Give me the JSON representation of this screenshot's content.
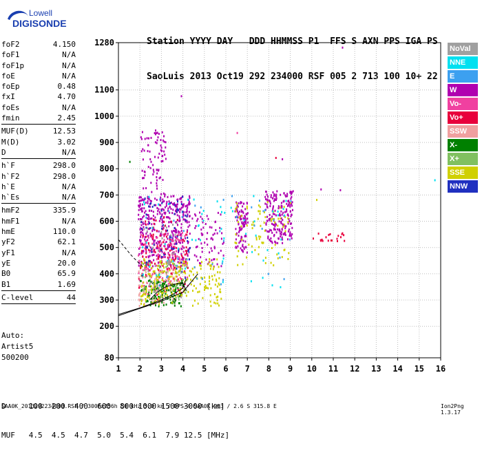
{
  "logo": {
    "line1": "Lowell",
    "line2": "DIGISONDE"
  },
  "header": {
    "line1": "Station YYYY DAY   DDD HHMMSS P1  FFS S AXN PPS IGA PS",
    "line2": "SaoLuis 2013 Oct19 292 234000 RSF 005 2 713 100 10+ 22"
  },
  "params_group1": [
    {
      "name": "foF2",
      "value": "4.150"
    },
    {
      "name": "foF1",
      "value": "N/A"
    },
    {
      "name": "foF1p",
      "value": "N/A"
    },
    {
      "name": "foE",
      "value": "N/A"
    },
    {
      "name": "foEp",
      "value": "0.48"
    },
    {
      "name": "fxI",
      "value": "4.70"
    },
    {
      "name": "foEs",
      "value": "N/A"
    },
    {
      "name": "fmin",
      "value": "2.45"
    }
  ],
  "params_group2": [
    {
      "name": "MUF(D)",
      "value": "12.53"
    },
    {
      "name": "M(D)",
      "value": "3.02"
    },
    {
      "name": "D",
      "value": "N/A"
    }
  ],
  "params_group3": [
    {
      "name": "h`F",
      "value": "298.0"
    },
    {
      "name": "h`F2",
      "value": "298.0"
    },
    {
      "name": "h`E",
      "value": "N/A"
    },
    {
      "name": "h`Es",
      "value": "N/A"
    }
  ],
  "params_group4": [
    {
      "name": "hmF2",
      "value": "335.9"
    },
    {
      "name": "hmF1",
      "value": "N/A"
    },
    {
      "name": "hmE",
      "value": "110.0"
    },
    {
      "name": "yF2",
      "value": "62.1"
    },
    {
      "name": "yF1",
      "value": "N/A"
    },
    {
      "name": "yE",
      "value": "20.0"
    },
    {
      "name": "B0",
      "value": "65.9"
    },
    {
      "name": "B1",
      "value": "1.69"
    }
  ],
  "clevel": {
    "name": "C-level",
    "value": "44"
  },
  "auto": {
    "line1": "Auto:",
    "line2": "Artist5",
    "line3": "500200"
  },
  "legend": [
    {
      "label": "NoVal",
      "color": "#a0a0a0"
    },
    {
      "label": "NNE",
      "color": "#00e0f0"
    },
    {
      "label": "E",
      "color": "#3ca0f0"
    },
    {
      "label": "W",
      "color": "#b000b0"
    },
    {
      "label": "Vo-",
      "color": "#f040a0"
    },
    {
      "label": "Vo+",
      "color": "#e8003c"
    },
    {
      "label": "SSW",
      "color": "#f0a0a0"
    },
    {
      "label": "X-",
      "color": "#008000"
    },
    {
      "label": "X+",
      "color": "#80c060"
    },
    {
      "label": "SSE",
      "color": "#d0d000"
    },
    {
      "label": "NNW",
      "color": "#2030c0"
    }
  ],
  "footer": {
    "d_line": "D     100  200  400  600  800 1000 1500 3000 [km]",
    "muf_line": "MUF   4.5  4.5  4.7  5.0  5.4  6.1  7.9 12.5 [MHz]",
    "file_line": "SAA0K_2013292234000.RSF / 300fx256h 50 kHz 5.0 km / DPS-4 SAA0K 903 / 2.6 S 315.8 E",
    "version": "Ion2Png 1.3.17"
  },
  "chart_data": {
    "type": "scatter",
    "title": "",
    "xlabel": "",
    "ylabel": "",
    "xlim": [
      1,
      16
    ],
    "ylim": [
      80,
      1280
    ],
    "x_ticks": [
      1,
      2,
      3,
      4,
      5,
      6,
      7,
      8,
      9,
      10,
      11,
      12,
      13,
      14,
      15,
      16
    ],
    "y_ticks": [
      80,
      200,
      300,
      400,
      500,
      600,
      700,
      800,
      900,
      1000,
      1100,
      1280
    ],
    "grid": true,
    "legend_placement": "right",
    "clusters": [
      {
        "name": "W",
        "x": [
          1.9,
          4.3
        ],
        "y": [
          430,
          700
        ],
        "density": 420
      },
      {
        "name": "W",
        "x": [
          2.0,
          3.2
        ],
        "y": [
          700,
          950
        ],
        "density": 80
      },
      {
        "name": "W",
        "x": [
          6.4,
          7.0
        ],
        "y": [
          480,
          680
        ],
        "density": 110
      },
      {
        "name": "W",
        "x": [
          7.8,
          9.1
        ],
        "y": [
          520,
          720
        ],
        "density": 200
      },
      {
        "name": "W",
        "x": [
          4.4,
          5.9
        ],
        "y": [
          420,
          640
        ],
        "density": 70
      },
      {
        "name": "Vo-",
        "x": [
          1.9,
          4.2
        ],
        "y": [
          350,
          560
        ],
        "density": 160
      },
      {
        "name": "Vo+",
        "x": [
          1.9,
          4.2
        ],
        "y": [
          300,
          620
        ],
        "density": 140
      },
      {
        "name": "SSW",
        "x": [
          1.9,
          3.6
        ],
        "y": [
          280,
          420
        ],
        "density": 90
      },
      {
        "name": "X-",
        "x": [
          2.0,
          4.0
        ],
        "y": [
          280,
          380
        ],
        "density": 120
      },
      {
        "name": "X+",
        "x": [
          2.0,
          4.2
        ],
        "y": [
          300,
          450
        ],
        "density": 60
      },
      {
        "name": "SSE",
        "x": [
          2.0,
          5.8
        ],
        "y": [
          280,
          460
        ],
        "density": 220
      },
      {
        "name": "SSE",
        "x": [
          6.4,
          9.0
        ],
        "y": [
          420,
          680
        ],
        "density": 80
      },
      {
        "name": "NNE",
        "x": [
          2.0,
          9.0
        ],
        "y": [
          350,
          700
        ],
        "density": 60
      },
      {
        "name": "E",
        "x": [
          2.0,
          9.0
        ],
        "y": [
          350,
          700
        ],
        "density": 40
      },
      {
        "name": "NNW",
        "x": [
          2.0,
          4.3
        ],
        "y": [
          380,
          700
        ],
        "density": 60
      },
      {
        "name": "NoVal",
        "x": [
          2.0,
          4.0
        ],
        "y": [
          300,
          600
        ],
        "density": 40
      },
      {
        "name": "Vo+",
        "x": [
          10.0,
          11.5
        ],
        "y": [
          520,
          560
        ],
        "density": 20
      }
    ],
    "scattered_points": [
      {
        "name": "W",
        "x": 11.4,
        "y": 1265
      },
      {
        "name": "W",
        "x": 10.4,
        "y": 725
      },
      {
        "name": "W",
        "x": 11.3,
        "y": 722
      },
      {
        "name": "NNE",
        "x": 15.7,
        "y": 760
      },
      {
        "name": "SSE",
        "x": 10.2,
        "y": 685
      },
      {
        "name": "Vo+",
        "x": 8.3,
        "y": 845
      },
      {
        "name": "W",
        "x": 8.6,
        "y": 840
      },
      {
        "name": "Vo-",
        "x": 6.5,
        "y": 940
      },
      {
        "name": "X-",
        "x": 1.5,
        "y": 830
      },
      {
        "name": "W",
        "x": 3.9,
        "y": 1080
      },
      {
        "name": "W",
        "x": 2.3,
        "y": 920
      }
    ],
    "profile_curves": [
      {
        "name": "o-trace",
        "x": [
          1.0,
          2.0,
          3.0,
          3.5,
          4.0,
          4.15
        ],
        "y": [
          245,
          270,
          300,
          320,
          345,
          380
        ]
      },
      {
        "name": "x-trace",
        "x": [
          1.0,
          2.0,
          3.0,
          4.0,
          4.7
        ],
        "y": [
          240,
          268,
          295,
          330,
          400
        ]
      },
      {
        "name": "profile",
        "x": [
          2.45,
          2.8,
          3.2,
          3.6,
          4.0,
          4.15
        ],
        "y": [
          300,
          330,
          350,
          360,
          365,
          336
        ]
      },
      {
        "name": "bottomside",
        "x": [
          1.0,
          1.6,
          2.2
        ],
        "y": [
          530,
          470,
          420
        ]
      }
    ]
  }
}
